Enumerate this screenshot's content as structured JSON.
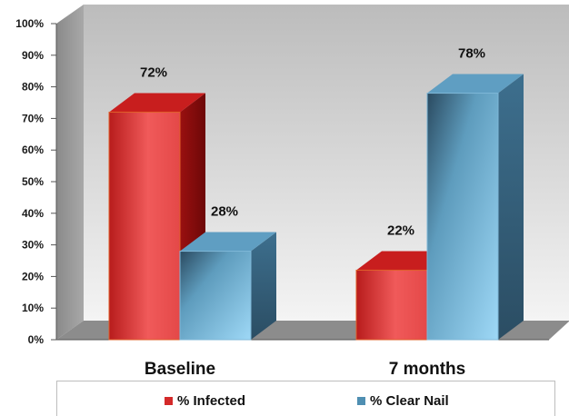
{
  "chart_data": {
    "type": "bar",
    "categories": [
      "Baseline",
      "7 months"
    ],
    "series": [
      {
        "name": "% Infected",
        "values": [
          72,
          22
        ],
        "color": "#d42a2a"
      },
      {
        "name": "% Clear Nail",
        "values": [
          28,
          78
        ],
        "color": "#6fb7dc"
      }
    ],
    "data_labels": [
      [
        "72%",
        "22%"
      ],
      [
        "28%",
        "78%"
      ]
    ],
    "ylim": [
      0,
      100
    ],
    "yticks": [
      "0%",
      "10%",
      "20%",
      "30%",
      "40%",
      "50%",
      "60%",
      "70%",
      "80%",
      "90%",
      "100%"
    ],
    "legend_position": "bottom",
    "style": "3d"
  }
}
